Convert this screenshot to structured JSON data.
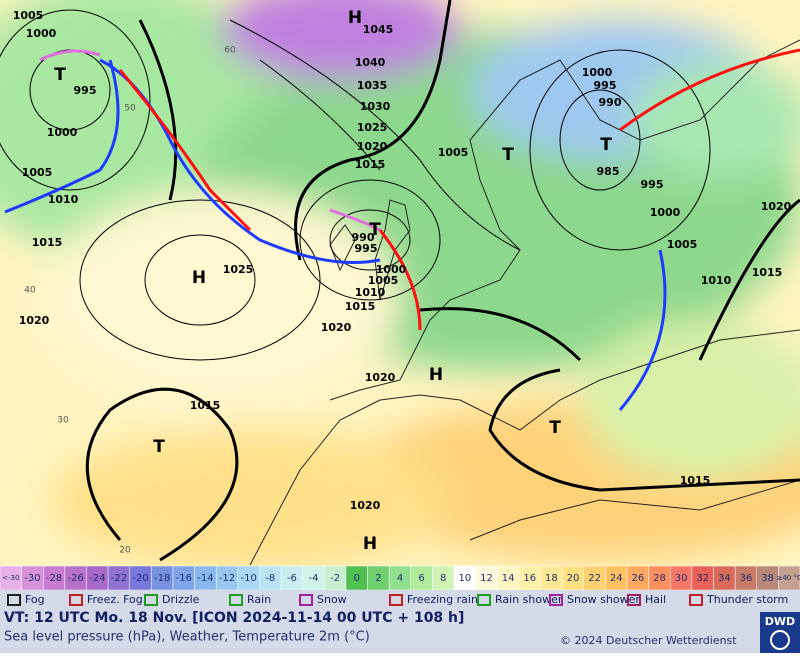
{
  "map": {
    "labels": [
      "H",
      "1045",
      "1040",
      "1035",
      "1030",
      "1025",
      "1020",
      "1015",
      "1005",
      "1000",
      "995",
      "990",
      "985",
      "995",
      "1000",
      "1005",
      "1010",
      "1015",
      "1020",
      "T",
      "T",
      "1005",
      "1000",
      "T",
      "995",
      "1000",
      "1005",
      "1010",
      "1015",
      "H",
      "1025",
      "1020",
      "1020",
      "990",
      "995",
      "T",
      "1000",
      "1005",
      "1010",
      "1015",
      "1020",
      "H",
      "T",
      "1015",
      "1015",
      "T",
      "1020",
      "H"
    ],
    "contour_labels": [
      "60",
      "50",
      "40",
      "30",
      "20"
    ]
  },
  "colorbar": {
    "labels": [
      "<-30",
      "-30",
      "-28",
      "-26",
      "-24",
      "-22",
      "-20",
      "-18",
      "-16",
      "-14",
      "-12",
      "-10",
      "-8",
      "-6",
      "-4",
      "-2",
      "0",
      "2",
      "4",
      "6",
      "8",
      "10",
      "12",
      "14",
      "16",
      "18",
      "20",
      "22",
      "24",
      "26",
      "28",
      "30",
      "32",
      "34",
      "36",
      "38",
      "≥40 °C"
    ],
    "colors": [
      "#e8b0e8",
      "#d890d8",
      "#c87cd0",
      "#b870c8",
      "#a868c8",
      "#9070d0",
      "#7878d8",
      "#7890e0",
      "#80a4e8",
      "#88b8f0",
      "#98c8f0",
      "#a8d8f4",
      "#b8e4f4",
      "#c8eef0",
      "#d0f4e8",
      "#c8f0d0",
      "#50c050",
      "#70d070",
      "#90e090",
      "#b0ec9c",
      "#d0f4b4",
      "#ffffff",
      "#fffadc",
      "#fff6c4",
      "#fff0a8",
      "#ffe894",
      "#ffe080",
      "#ffd070",
      "#ffc060",
      "#ffa860",
      "#ff9060",
      "#f87868",
      "#e86058",
      "#d86c58",
      "#c87c68",
      "#b88878",
      "#c4a090"
    ]
  },
  "legend": [
    "Fog",
    "Freez. Fog",
    "Drizzle",
    "Rain",
    "Snow",
    "Freezing rain",
    "Rain shower",
    "Snow shower",
    "Hail",
    "Thunder storm"
  ],
  "footer": {
    "line1": "VT: 12 UTC Mo.  18 Nov. [ICON 2024-11-14  00 UTC + 108 h]",
    "line2": "Sea level pressure (hPa), Weather, Temperature 2m (°C)",
    "copyright": "© 2024 Deutscher Wetterdienst",
    "logo": "DWD"
  }
}
